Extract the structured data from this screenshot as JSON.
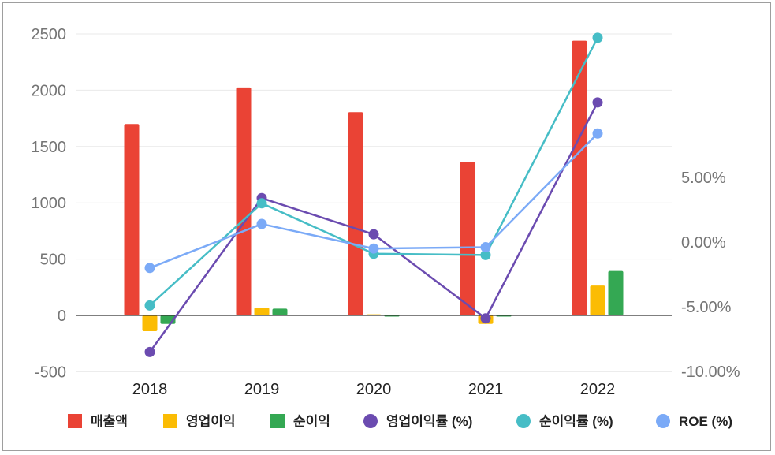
{
  "chart_data": {
    "type": "bar",
    "categories": [
      "2018",
      "2019",
      "2020",
      "2021",
      "2022"
    ],
    "y_left": {
      "min": -500,
      "max": 2500,
      "ticks": [
        "2500",
        "2000",
        "1500",
        "1000",
        "500",
        "0",
        "-500"
      ],
      "tick_values": [
        2500,
        2000,
        1500,
        1000,
        500,
        0,
        -500
      ]
    },
    "y_right": {
      "min": -10,
      "max": 15,
      "ticks": [
        "5.00%",
        "0.00%",
        "-5.00%",
        "-10.00%"
      ],
      "tick_values": [
        5,
        0,
        -5,
        -10
      ]
    },
    "bar_series": [
      {
        "name": "매출액",
        "color": "#ea4335",
        "values": [
          1700,
          2025,
          1805,
          1365,
          2440
        ]
      },
      {
        "name": "영업이익",
        "color": "#fbbc04",
        "values": [
          -140,
          70,
          10,
          -75,
          265
        ]
      },
      {
        "name": "순이익",
        "color": "#34a853",
        "values": [
          -75,
          60,
          -5,
          -5,
          395
        ]
      }
    ],
    "line_series": [
      {
        "name": "영업이익률 (%)",
        "color": "#6b4bb0",
        "values": [
          -8.5,
          3.4,
          0.6,
          -5.9,
          10.8
        ]
      },
      {
        "name": "순이익률 (%)",
        "color": "#46bdc6",
        "values": [
          -4.9,
          3.0,
          -0.9,
          -1.0,
          15.8
        ]
      },
      {
        "name": "ROE (%)",
        "color": "#7baaf7",
        "values": [
          -2.0,
          1.4,
          -0.5,
          -0.4,
          8.4
        ]
      }
    ],
    "legend_position": "bottom",
    "grid": true
  }
}
